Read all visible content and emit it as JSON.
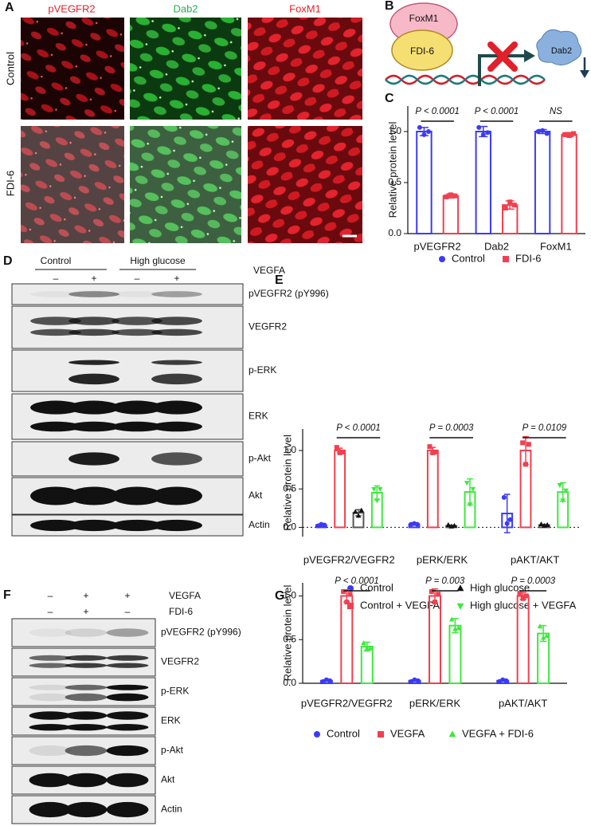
{
  "panel_labels": {
    "a": "A",
    "b": "B",
    "c": "C",
    "d": "D",
    "e": "E",
    "f": "F",
    "g": "G"
  },
  "panel_a": {
    "columns": [
      "pVEGFR2",
      "Dab2",
      "FoxM1"
    ],
    "rows": [
      "Control",
      "FDI-6"
    ]
  },
  "panel_b": {
    "protein": "FoxM1",
    "inhibitor": "FDI-6",
    "target": "Dab2"
  },
  "panel_d": {
    "groups": [
      "Control",
      "High glucose"
    ],
    "treatment": "VEGFA",
    "signs": [
      "–",
      "+",
      "–",
      "+"
    ],
    "bands": [
      "pVEGFR2 (pY996)",
      "VEGFR2",
      "p-ERK",
      "ERK",
      "p-Akt",
      "Akt",
      "Actin"
    ]
  },
  "panel_f": {
    "treatments": [
      {
        "label": "VEGFA",
        "signs": [
          "–",
          "+",
          "+"
        ]
      },
      {
        "label": "FDI-6",
        "signs": [
          "–",
          "+",
          "–"
        ]
      }
    ],
    "bands": [
      "pVEGFR2 (pY996)",
      "VEGFR2",
      "p-ERK",
      "ERK",
      "p-Akt",
      "Akt",
      "Actin"
    ]
  },
  "chart_data": [
    {
      "type": "bar",
      "ylabel": "Relative protein level",
      "categories": [
        "pVEGFR2",
        "Dab2",
        "FoxM1"
      ],
      "series": [
        {
          "name": "Control",
          "color": "#3b3bf5",
          "marker": "circle",
          "values": [
            1.0,
            1.0,
            1.0
          ],
          "errors": [
            0.04,
            0.05,
            0.02
          ],
          "points": [
            [
              1.04,
              0.97,
              1.0
            ],
            [
              1.04,
              0.97,
              0.99
            ],
            [
              1.0,
              1.01,
              0.98
            ]
          ]
        },
        {
          "name": "FDI-6",
          "color": "#f04050",
          "marker": "square",
          "values": [
            0.37,
            0.28,
            0.97
          ],
          "errors": [
            0.02,
            0.04,
            0.02
          ],
          "points": [
            [
              0.36,
              0.38,
              0.37
            ],
            [
              0.25,
              0.31,
              0.28
            ],
            [
              0.97,
              0.96,
              0.98
            ]
          ]
        }
      ],
      "ylim": [
        0,
        1.25
      ],
      "yticks": [
        {
          "value": 0,
          "label": "0.0"
        },
        {
          "value": 0.5,
          "label": "0.5"
        },
        {
          "value": 1,
          "label": "1.0"
        }
      ],
      "annotations": [
        "P < 0.0001",
        "P < 0.0001",
        "NS"
      ]
    },
    {
      "type": "bar",
      "ylabel": "Relative protein level",
      "categories": [
        "pVEGFR2/VEGFR2",
        "pERK/ERK",
        "pAKT/AKT"
      ],
      "series": [
        {
          "name": "Control",
          "color": "#3b3bf5",
          "marker": "circle",
          "values": [
            0.03,
            0.04,
            0.18
          ],
          "errors": [
            0.01,
            0.01,
            0.25
          ],
          "points": [
            [
              0.02,
              0.04,
              0.03
            ],
            [
              0.04,
              0.05,
              0.04
            ],
            [
              0.39,
              0.05,
              0.1
            ]
          ]
        },
        {
          "name": "Control + VEGFA",
          "color": "#f04050",
          "marker": "square",
          "values": [
            1.0,
            1.0,
            1.0
          ],
          "errors": [
            0.03,
            0.04,
            0.18
          ],
          "points": [
            [
              1.04,
              0.97,
              0.98
            ],
            [
              1.05,
              0.97,
              0.98
            ],
            [
              1.1,
              0.82,
              1.08
            ]
          ]
        },
        {
          "name": "High glucose",
          "color": "#555555",
          "marker": "triangle",
          "values": [
            0.19,
            0.02,
            0.03
          ],
          "errors": [
            0.04,
            0.01,
            0.01
          ],
          "points": [
            [
              0.2,
              0.15,
              0.22
            ],
            [
              0.03,
              0.01,
              0.02
            ],
            [
              0.04,
              0.02,
              0.03
            ]
          ]
        },
        {
          "name": "High glucose + VEGFA",
          "color": "#3ee83e",
          "marker": "triangle-down",
          "values": [
            0.45,
            0.46,
            0.46
          ],
          "errors": [
            0.09,
            0.17,
            0.12
          ],
          "points": [
            [
              0.5,
              0.35,
              0.5
            ],
            [
              0.58,
              0.3,
              0.5
            ],
            [
              0.55,
              0.35,
              0.48
            ]
          ]
        }
      ],
      "ylim": [
        -0.12,
        1.28
      ],
      "yticks": [
        {
          "value": 0,
          "label": "0.0"
        },
        {
          "value": 0.5,
          "label": "0.5"
        },
        {
          "value": 1,
          "label": "1.0"
        }
      ],
      "annotations": [
        "P < 0.0001",
        "P = 0.0003",
        "P = 0.0109"
      ]
    },
    {
      "type": "bar",
      "ylabel": "Relative protein level",
      "categories": [
        "pVEGFR2/VEGFR2",
        "pERK/ERK",
        "pAKT/AKT"
      ],
      "series": [
        {
          "name": "Control",
          "color": "#3b3bf5",
          "marker": "circle",
          "values": [
            0.03,
            0.03,
            0.03
          ],
          "errors": [
            0.01,
            0.01,
            0.01
          ],
          "points": [
            [
              0.02,
              0.04,
              0.03
            ],
            [
              0.02,
              0.04,
              0.03
            ],
            [
              0.02,
              0.04,
              0.03
            ]
          ]
        },
        {
          "name": "VEGFA",
          "color": "#f04050",
          "marker": "square",
          "values": [
            1.0,
            1.0,
            1.0
          ],
          "errors": [
            0.07,
            0.08,
            0.04
          ],
          "points": [
            [
              1.05,
              0.93,
              1.02
            ],
            [
              1.05,
              0.93,
              1.02
            ],
            [
              1.03,
              0.97,
              1.0
            ]
          ]
        },
        {
          "name": "VEGFA + FDI-6",
          "color": "#3ee83e",
          "marker": "triangle",
          "values": [
            0.42,
            0.66,
            0.57
          ],
          "errors": [
            0.05,
            0.08,
            0.09
          ],
          "points": [
            [
              0.46,
              0.4,
              0.4
            ],
            [
              0.73,
              0.62,
              0.63
            ],
            [
              0.65,
              0.52,
              0.54
            ]
          ]
        }
      ],
      "ylim": [
        0,
        1.15
      ],
      "yticks": [
        {
          "value": 0,
          "label": "0.0"
        },
        {
          "value": 0.5,
          "label": "0.5"
        },
        {
          "value": 1,
          "label": "1.0"
        }
      ],
      "annotations": [
        "P < 0.0001",
        "P = 0.003",
        "P = 0.0003"
      ]
    }
  ]
}
